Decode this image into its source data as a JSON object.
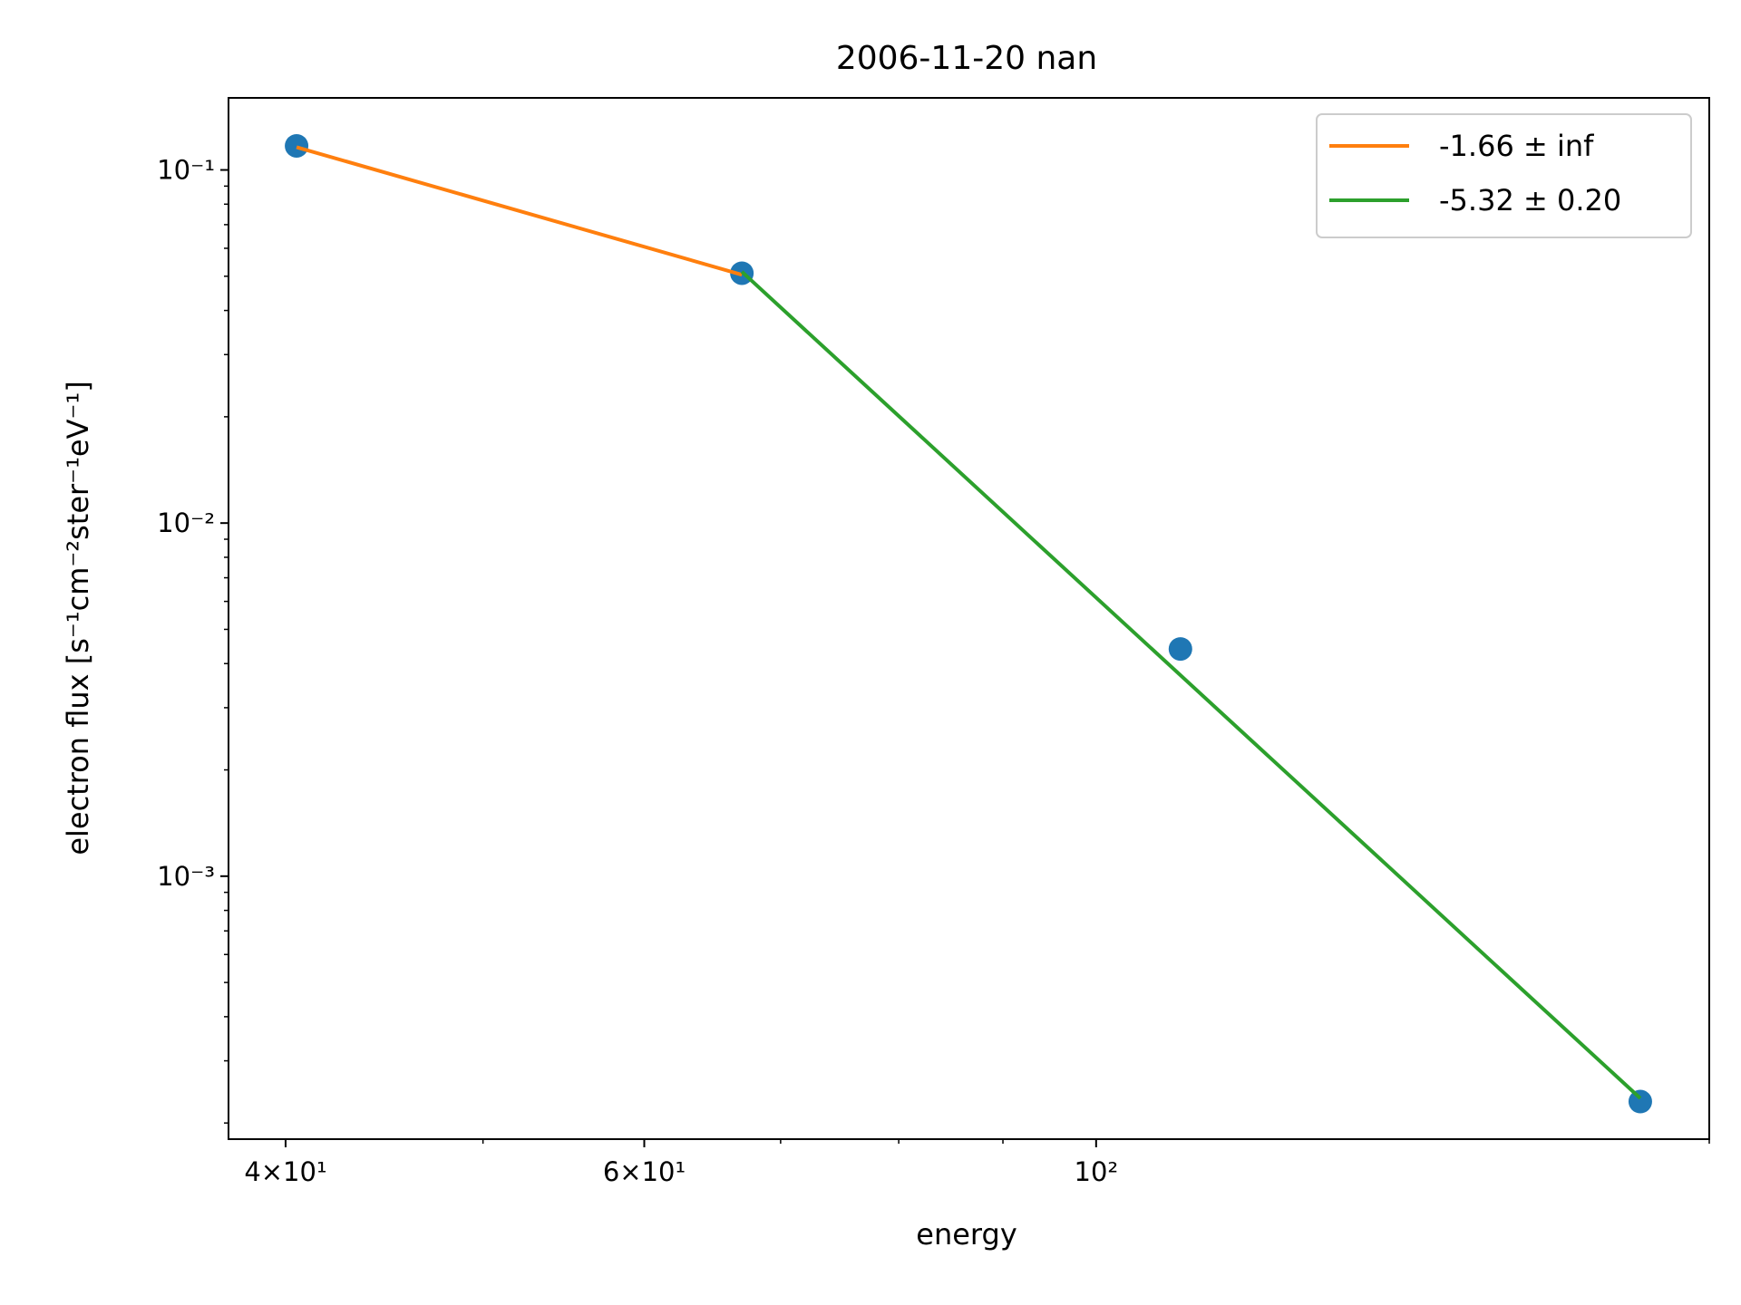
{
  "chart_data": {
    "type": "line",
    "title": "2006-11-20 nan",
    "xlabel": "energy",
    "ylabel": "electron flux [s⁻¹cm⁻²ster⁻¹eV⁻¹]",
    "x_scale": "log",
    "y_scale": "log",
    "xlim": [
      37.5,
      200
    ],
    "ylim": [
      0.00018,
      0.16
    ],
    "grid": false,
    "legend_position": "top-right",
    "x_ticks": [
      {
        "value": 40,
        "label": "4×10¹"
      },
      {
        "value": 60,
        "label": "6×10¹"
      },
      {
        "value": 100,
        "label": "10²"
      }
    ],
    "y_ticks": [
      {
        "value": 0.1,
        "label": "10⁻¹"
      },
      {
        "value": 0.01,
        "label": "10⁻²"
      },
      {
        "value": 0.001,
        "label": "10⁻³"
      }
    ],
    "scatter": {
      "color": "#1f77b4",
      "x": [
        40.5,
        67,
        110,
        185
      ],
      "y": [
        0.117,
        0.051,
        0.0044,
        0.00023
      ]
    },
    "series": [
      {
        "name": "-1.66 ± inf",
        "color": "#ff7f0e",
        "x": [
          40.5,
          67
        ],
        "y": [
          0.116,
          0.0505
        ]
      },
      {
        "name": "-5.32 ± 0.20",
        "color": "#2ca02c",
        "x": [
          67,
          185
        ],
        "y": [
          0.0515,
          0.000235
        ]
      }
    ]
  }
}
